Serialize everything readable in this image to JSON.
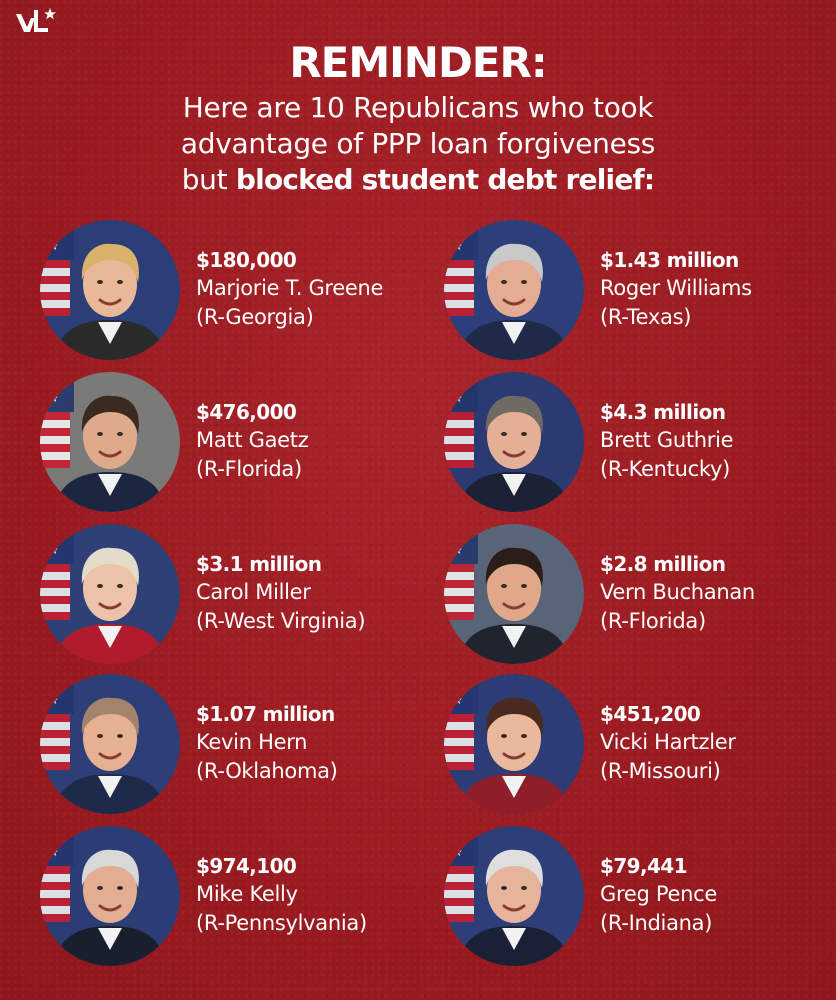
{
  "brand": {
    "logo_icon": "vl-star-logo-icon"
  },
  "header": {
    "headline": "REMINDER:",
    "line1": "Here are 10 Republicans who took",
    "line2": "advantage of PPP loan forgiveness",
    "line3_prefix": "but ",
    "line3_bold": "blocked student debt relief:"
  },
  "people": [
    {
      "amount": "$180,000",
      "name": "Marjorie T. Greene",
      "state": "(R-Georgia)",
      "hair": "#d9b26b",
      "suit": "#2a2a2a",
      "skin": "#e8b898",
      "bg": "#2c3e78"
    },
    {
      "amount": "$1.43 million",
      "name": "Roger Williams",
      "state": "(R-Texas)",
      "hair": "#c9c9c9",
      "suit": "#1f2a48",
      "skin": "#e4ac92",
      "bg": "#2d3f7a"
    },
    {
      "amount": "$476,000",
      "name": "Matt Gaetz",
      "state": "(R-Florida)",
      "hair": "#3a2a20",
      "suit": "#1d2640",
      "skin": "#deaa8c",
      "bg": "#7a7a78"
    },
    {
      "amount": "$4.3 million",
      "name": "Brett Guthrie",
      "state": "(R-Kentucky)",
      "hair": "#6f6a63",
      "suit": "#1c2236",
      "skin": "#e3b095",
      "bg": "#2b3a70"
    },
    {
      "amount": "$3.1 million",
      "name": "Carol Miller",
      "state": "(R-West Virginia)",
      "hair": "#e3dccb",
      "suit": "#b01c2c",
      "skin": "#ecc2a8",
      "bg": "#2f4076"
    },
    {
      "amount": "$2.8 million",
      "name": "Vern Buchanan",
      "state": "(R-Florida)",
      "hair": "#2b1e18",
      "suit": "#20242e",
      "skin": "#e0a888",
      "bg": "#5a6478"
    },
    {
      "amount": "$1.07 million",
      "name": "Kevin Hern",
      "state": "(R-Oklahoma)",
      "hair": "#a3836a",
      "suit": "#1d2a4a",
      "skin": "#e6b092",
      "bg": "#2e3f78"
    },
    {
      "amount": "$451,200",
      "name": "Vicki Hartzler",
      "state": "(R-Missouri)",
      "hair": "#4a2a1e",
      "suit": "#8e1f2a",
      "skin": "#eab89c",
      "bg": "#2d3c74"
    },
    {
      "amount": "$974,100",
      "name": "Mike Kelly",
      "state": "(R-Pennsylvania)",
      "hair": "#d8d8d8",
      "suit": "#1a1f2e",
      "skin": "#e2ad93",
      "bg": "#2c3c74"
    },
    {
      "amount": "$79,441",
      "name": "Greg Pence",
      "state": "(R-Indiana)",
      "hair": "#dedede",
      "suit": "#1a2036",
      "skin": "#e6b49a",
      "bg": "#2e3e78"
    }
  ]
}
